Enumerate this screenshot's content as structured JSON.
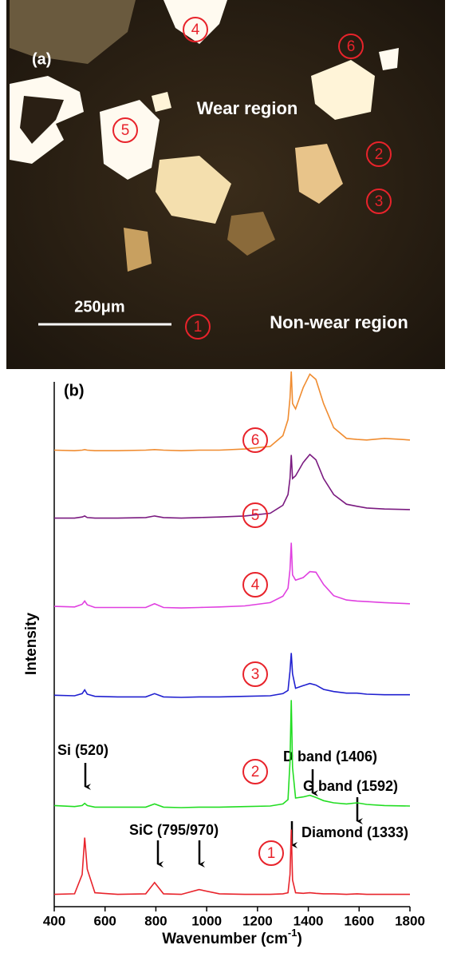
{
  "image": {
    "panel_label": "(a)",
    "wear_label": "Wear region",
    "non_wear_label": "Non-wear region",
    "scale_bar": "250μm",
    "spots": [
      "1",
      "2",
      "3",
      "4",
      "5",
      "6"
    ]
  },
  "chart_data": {
    "type": "line",
    "panel_label": "(b)",
    "y_label": "Intensity",
    "x_label_parts": [
      "Wavenumber (cm",
      "-1",
      ")"
    ],
    "xlim": [
      400,
      1800
    ],
    "xticks": [
      400,
      600,
      800,
      1000,
      1200,
      1400,
      1600,
      1800
    ],
    "ylim": [
      0,
      100
    ],
    "x": [
      400,
      480,
      510,
      520,
      530,
      560,
      650,
      760,
      795,
      830,
      900,
      970,
      1050,
      1150,
      1250,
      1300,
      1320,
      1328,
      1333,
      1338,
      1350,
      1380,
      1406,
      1430,
      1460,
      1500,
      1550,
      1592,
      1630,
      1700,
      1800
    ],
    "series": [
      {
        "name": "1",
        "color": "#e8232b",
        "values": [
          2.3,
          2.4,
          6,
          12.9,
          7,
          2.6,
          2.3,
          2.4,
          4.5,
          2.4,
          2.3,
          3.2,
          2.4,
          2.3,
          2.3,
          2.4,
          2.6,
          6,
          14.4,
          5,
          2.6,
          2.5,
          2.6,
          2.5,
          2.4,
          2.4,
          2.3,
          2.4,
          2.3,
          2.3,
          2.3
        ]
      },
      {
        "name": "2",
        "color": "#22dd22",
        "values": [
          18.9,
          18.7,
          18.9,
          19.3,
          18.9,
          18.6,
          18.6,
          18.6,
          19.2,
          18.6,
          18.5,
          18.6,
          18.6,
          18.7,
          18.8,
          19.2,
          20,
          27,
          38.6,
          26,
          20.3,
          20.5,
          20.8,
          20.4,
          19.8,
          19.4,
          19.2,
          19.4,
          19.1,
          18.9,
          18.8
        ]
      },
      {
        "name": "3",
        "color": "#2020d0",
        "values": [
          39.5,
          39.4,
          39.8,
          40.5,
          39.7,
          39.3,
          39.2,
          39.2,
          39.8,
          39.2,
          39.1,
          39.2,
          39.2,
          39.3,
          39.4,
          39.8,
          40.4,
          44,
          47.4,
          43.5,
          40.8,
          41.3,
          41.7,
          41.4,
          40.6,
          40.2,
          39.9,
          39.9,
          39.7,
          39.6,
          39.6
        ]
      },
      {
        "name": "4",
        "color": "#e040e0",
        "values": [
          56.1,
          56,
          56.5,
          57.1,
          56.4,
          55.9,
          55.9,
          55.9,
          56.6,
          55.9,
          55.8,
          55.9,
          56,
          56.2,
          56.8,
          58,
          59.5,
          63,
          68,
          62,
          61,
          61.5,
          62.6,
          62.5,
          60.2,
          58.1,
          57.3,
          57.1,
          57,
          56.8,
          56.6
        ]
      },
      {
        "name": "5",
        "color": "#7a1a80",
        "values": [
          72.6,
          72.6,
          72.8,
          73,
          72.7,
          72.6,
          72.6,
          72.7,
          73,
          72.7,
          72.6,
          72.7,
          72.8,
          73,
          73.5,
          75,
          77,
          80,
          84.4,
          80,
          80.5,
          83,
          84.5,
          83.5,
          80,
          77,
          75.2,
          74.8,
          74.5,
          74.3,
          74.2
        ]
      },
      {
        "name": "6",
        "color": "#f08c30",
        "values": [
          85.3,
          85.2,
          85.3,
          85.4,
          85.3,
          85.2,
          85.2,
          85.3,
          85.4,
          85.3,
          85.2,
          85.3,
          85.3,
          85.5,
          86,
          88,
          91,
          95,
          100,
          94,
          93,
          97,
          99.5,
          98.5,
          94,
          89.5,
          87.5,
          87.3,
          87.2,
          87.5,
          87.2
        ]
      }
    ],
    "annotations": [
      "Si (520)",
      "SiC (795/970)",
      "D band (1406)",
      "G band (1592)",
      "Diamond (1333)"
    ]
  }
}
